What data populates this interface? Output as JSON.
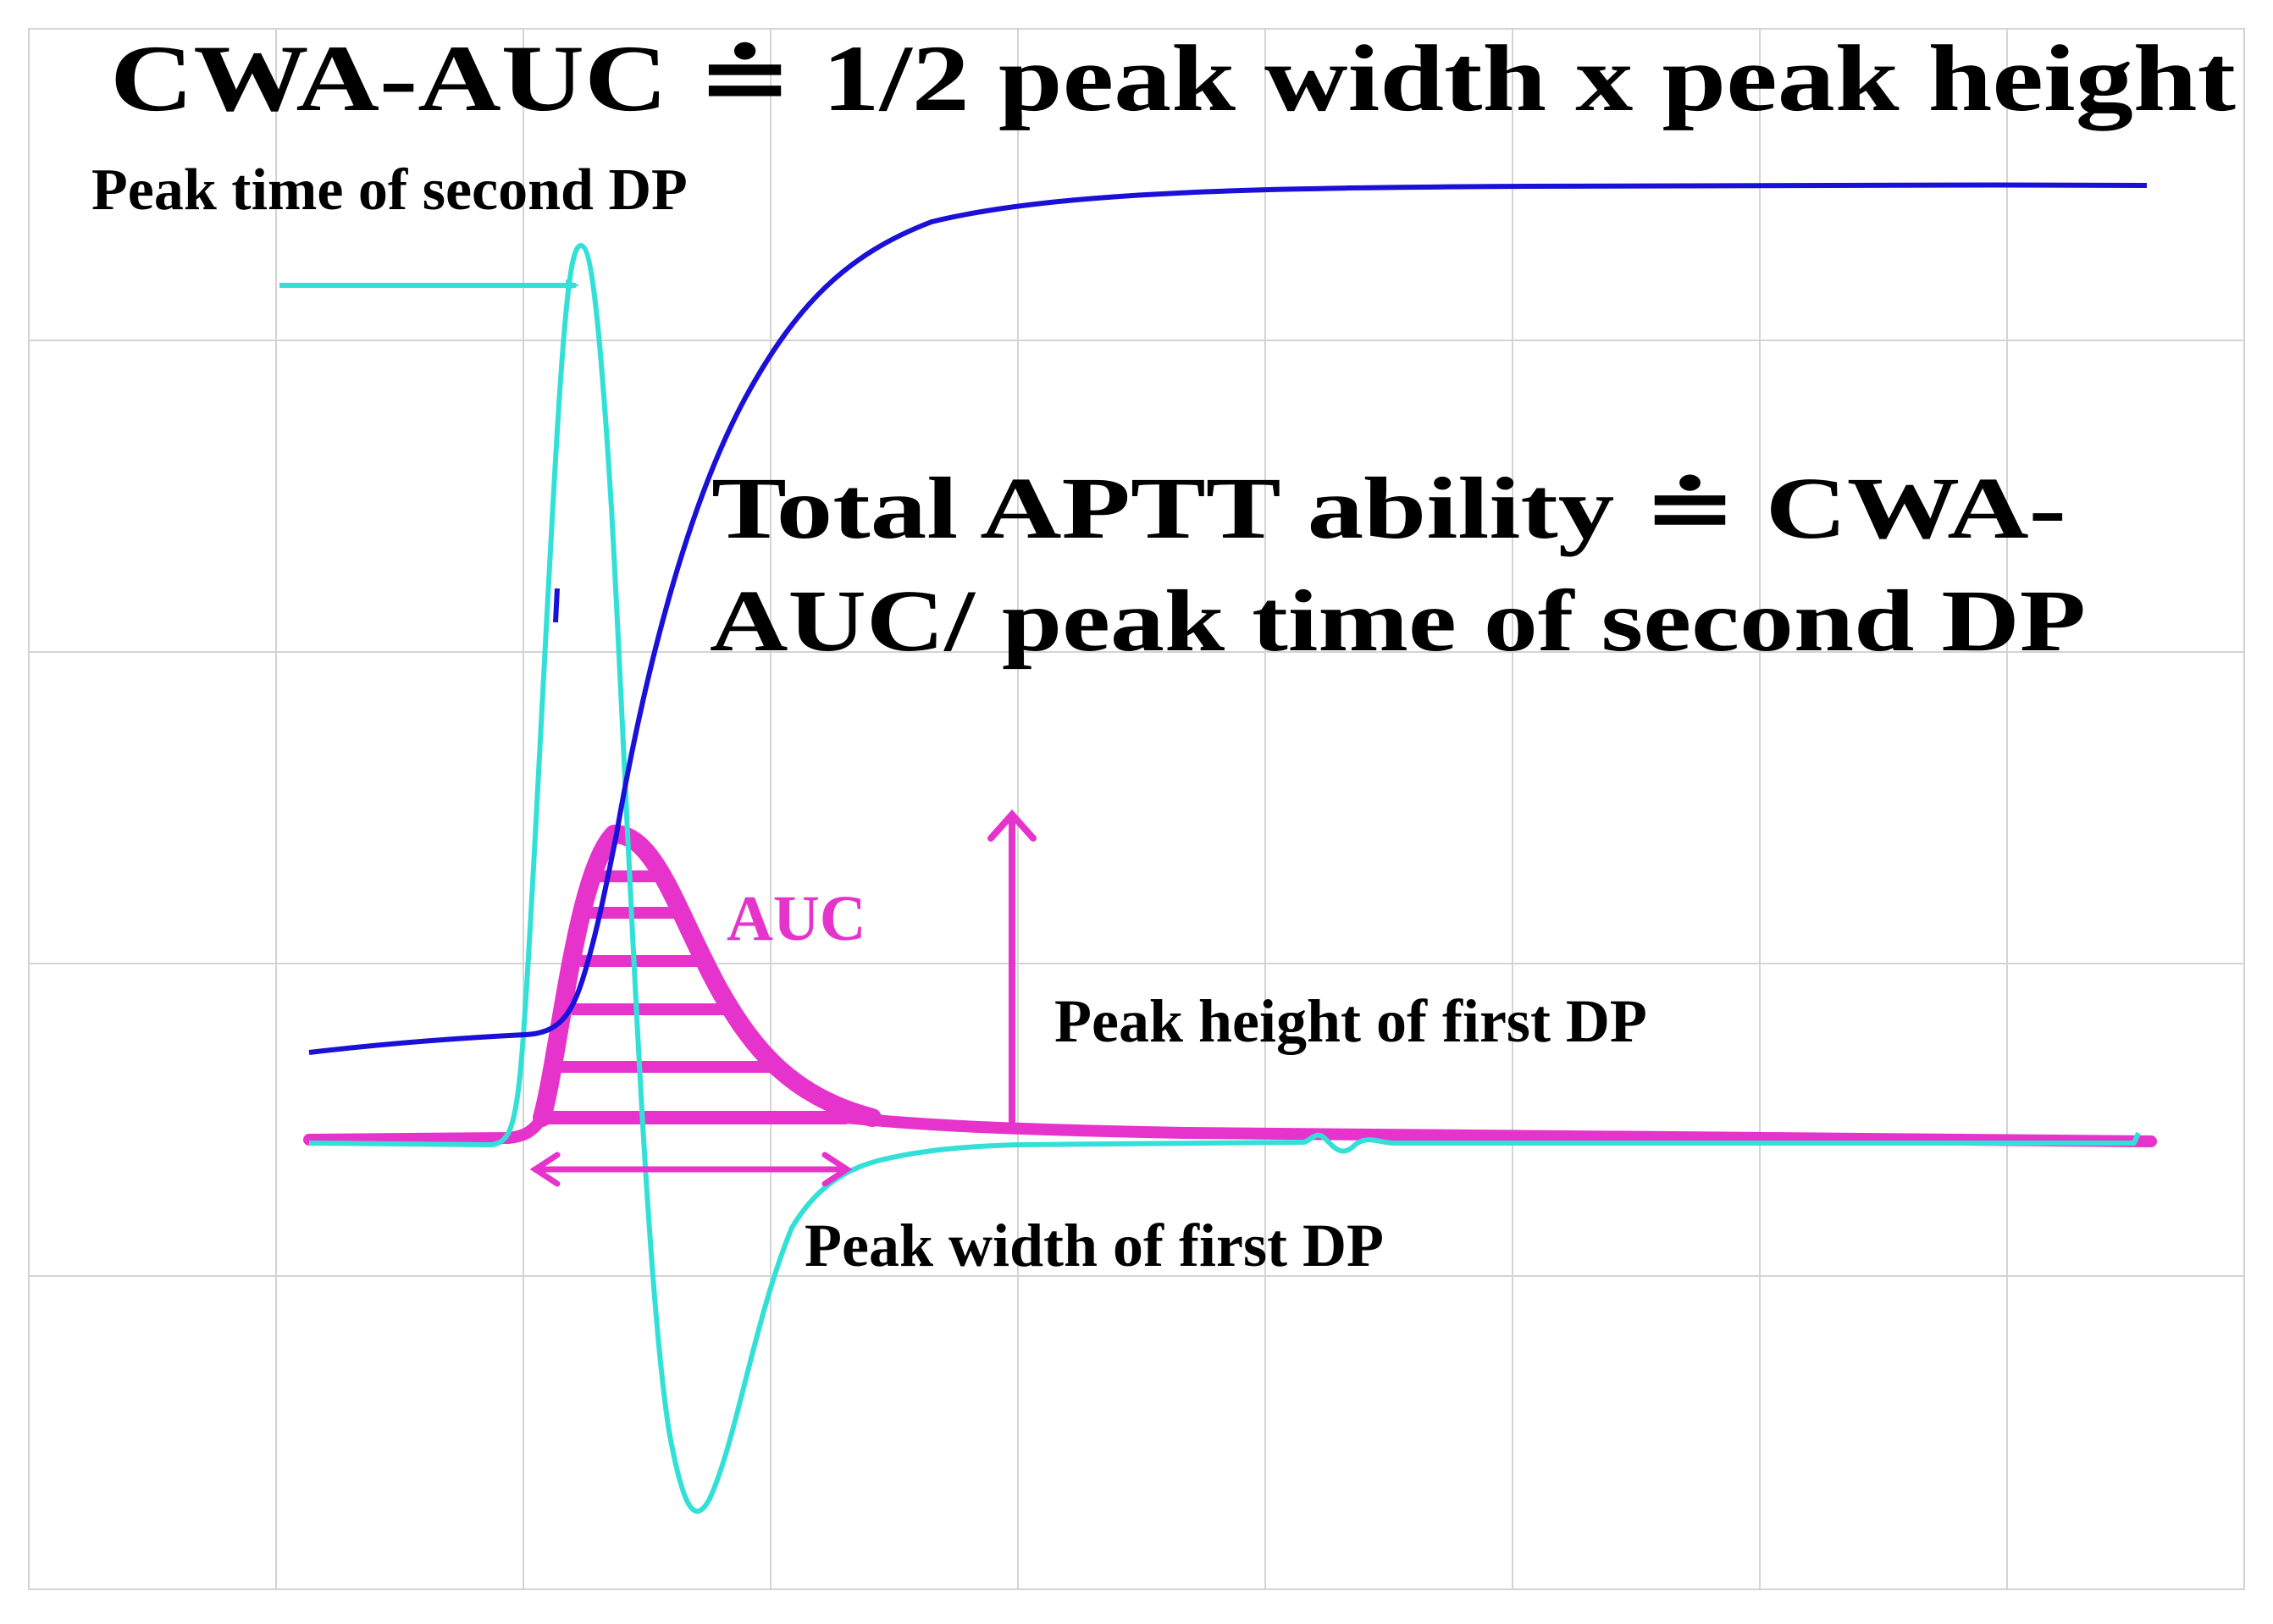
{
  "formula_top": "CWA-AUC ≐   1/2   peak width x peak height",
  "label_peak_time": "Peak time of second DP",
  "formula_total_line1": "Total APTT ability ≐ CWA-",
  "formula_total_line2": "AUC/ peak time of second DP",
  "label_auc": "AUC",
  "label_peak_height": "Peak height of first DP",
  "label_peak_width": "Peak width of first DP",
  "colors": {
    "grid": "#d4d4d4",
    "waveform": "#1a10d8",
    "second_derivative": "#33e0d8",
    "first_derivative": "#e633cc",
    "text": "#000000"
  }
}
